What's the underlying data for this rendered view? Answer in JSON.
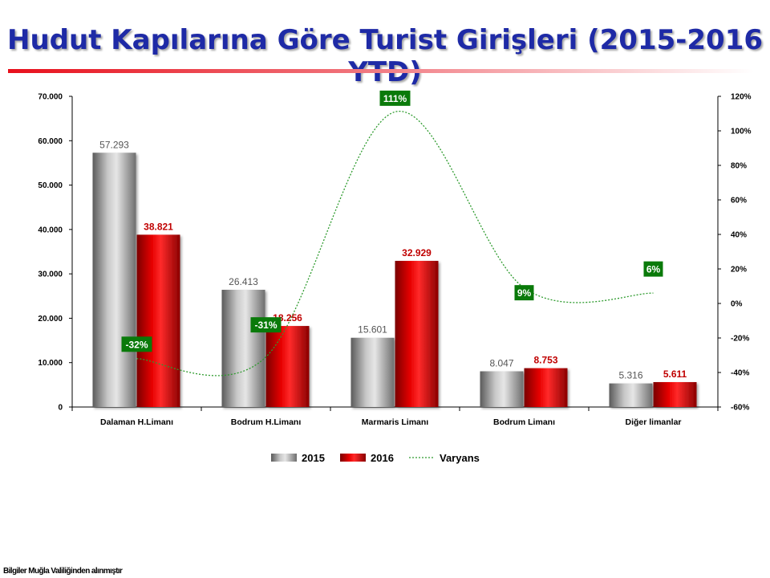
{
  "slide": {
    "title": "Hudut Kapılarına Göre Turist Girişleri (2015-2016 YTD)",
    "footer": "Bilgiler Muğla Valiliğinden alınmıştır"
  },
  "chart_data": {
    "type": "bar",
    "categories": [
      "Dalaman H.Limanı",
      "Bodrum H.Limanı",
      "Marmaris Limanı",
      "Bodrum Limanı",
      "Diğer limanlar"
    ],
    "series": [
      {
        "name": "2015",
        "values": [
          57293,
          26413,
          15601,
          8047,
          5316
        ],
        "labels": [
          "57.293",
          "26.413",
          "15.601",
          "8.047",
          "5.316"
        ],
        "color": "#a6a6a6"
      },
      {
        "name": "2016",
        "values": [
          38821,
          18256,
          32929,
          8753,
          5611
        ],
        "labels": [
          "38.821",
          "18.256",
          "32.929",
          "8.753",
          "5.611"
        ],
        "color": "#e00000"
      },
      {
        "name": "Varyans",
        "axis": "secondary",
        "type": "line",
        "style": "dotted",
        "values": [
          -32,
          -31,
          111,
          9,
          6
        ],
        "labels": [
          "-32%",
          "-31%",
          "111%",
          "9%",
          "6%"
        ],
        "color": "#2e9b2e",
        "label_color": "#0a7a0a"
      }
    ],
    "y_axis": {
      "min": 0,
      "max": 70000,
      "ticks": [
        0,
        10000,
        20000,
        30000,
        40000,
        50000,
        60000,
        70000
      ],
      "tick_labels": [
        "0",
        "10.000",
        "20.000",
        "30.000",
        "40.000",
        "50.000",
        "60.000",
        "70.000"
      ]
    },
    "y2_axis": {
      "min": -60,
      "max": 120,
      "ticks": [
        -60,
        -40,
        -20,
        0,
        20,
        40,
        60,
        80,
        100,
        120
      ],
      "tick_labels": [
        "-60%",
        "-40%",
        "-20%",
        "0%",
        "20%",
        "40%",
        "60%",
        "80%",
        "100%",
        "120%"
      ]
    },
    "grid": false,
    "legend_position": "bottom"
  }
}
